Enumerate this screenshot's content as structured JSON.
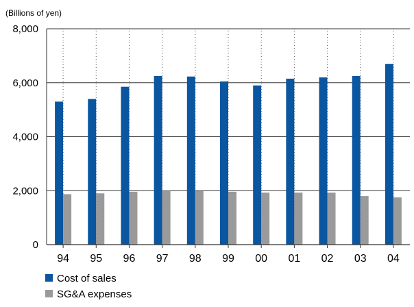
{
  "chart_data": {
    "type": "bar",
    "title": "",
    "unit_label": "(Billions of yen)",
    "xlabel": "",
    "ylabel": "",
    "categories": [
      "94",
      "95",
      "96",
      "97",
      "98",
      "99",
      "00",
      "01",
      "02",
      "03",
      "04"
    ],
    "ylim": [
      0,
      8000
    ],
    "yticks": [
      0,
      2000,
      4000,
      6000,
      8000
    ],
    "ytick_labels": [
      "0",
      "2,000",
      "4,000",
      "6,000",
      "8,000"
    ],
    "grid": "horizontal gridlines at y ticks, dotted vertical guides at categories",
    "legend_position": "bottom-left",
    "series": [
      {
        "name": "Cost of sales",
        "color": "#0a56a0",
        "values": [
          5300,
          5400,
          5850,
          6250,
          6230,
          6050,
          5900,
          6150,
          6200,
          6250,
          6700
        ]
      },
      {
        "name": "SG&A expenses",
        "color": "#9a9a9a",
        "values": [
          1870,
          1900,
          1960,
          2000,
          1990,
          1960,
          1930,
          1930,
          1930,
          1800,
          1750
        ]
      }
    ]
  }
}
